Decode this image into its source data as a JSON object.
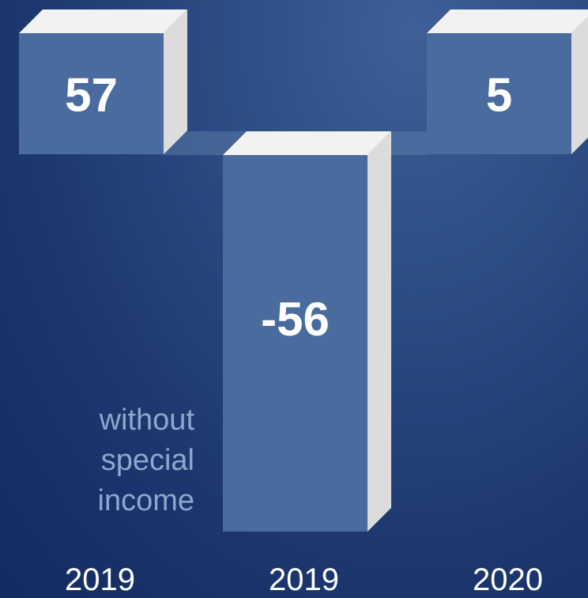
{
  "chart_data": {
    "type": "waterfall",
    "categories": [
      "2019",
      "2019",
      "2020"
    ],
    "values": [
      57,
      -56,
      5
    ],
    "steps": [
      "total",
      "delta",
      "total"
    ],
    "annotation": "without\nspecial\nincome",
    "colors": {
      "bar_front": "#4a6b9e",
      "bar_top": "#f2f2f2",
      "bar_side": "#dcdcdc",
      "connector": "#5a7aa8",
      "annotation": "#8fa6cd",
      "labels": "#ffffff"
    }
  }
}
